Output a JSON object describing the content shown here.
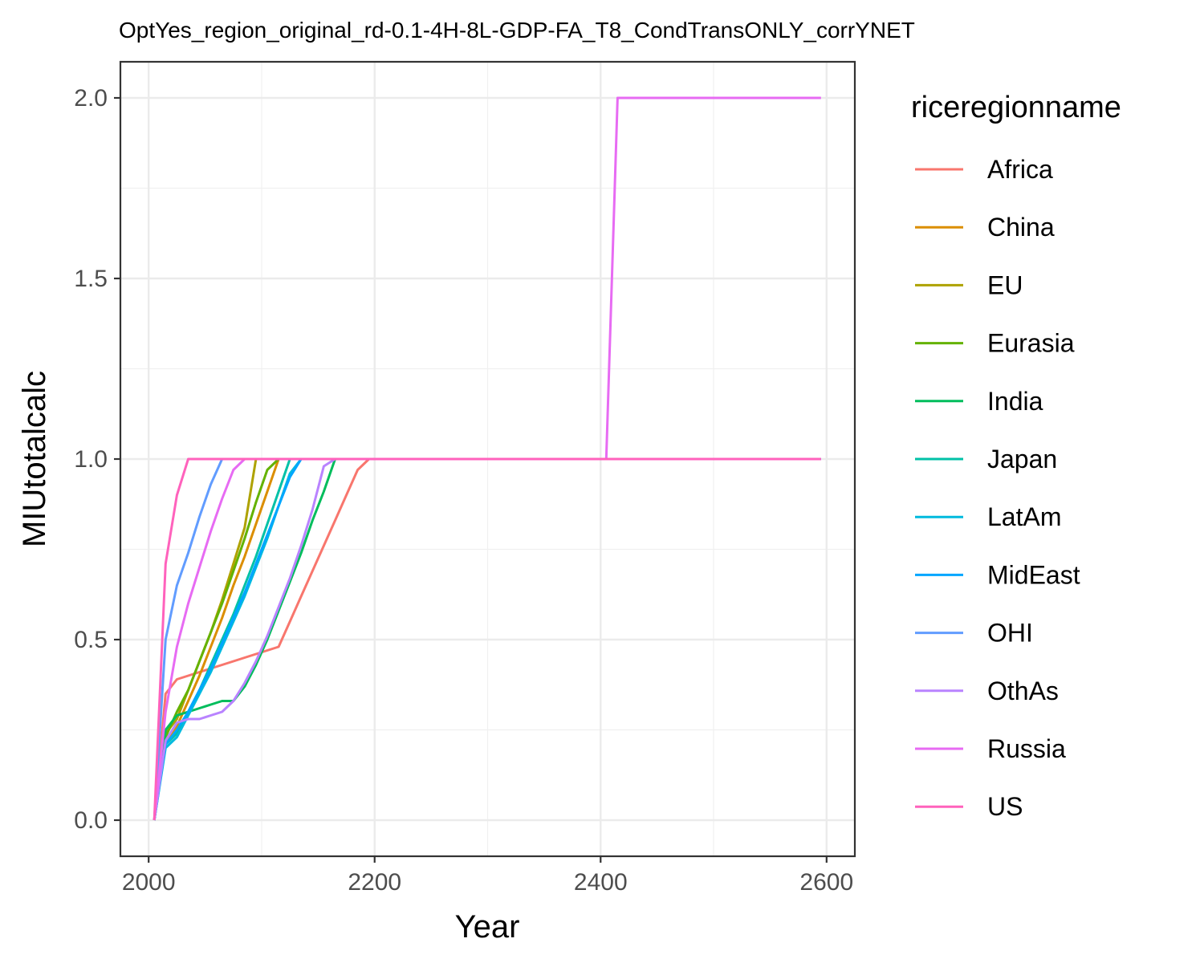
{
  "chart_data": {
    "type": "line",
    "title": "OptYes_region_original_rd-0.1-4H-8L-GDP-FA_T8_CondTransONLY_corrYNET",
    "xlabel": "Year",
    "ylabel": "MIUtotalcalc",
    "xlim": [
      1975,
      2625
    ],
    "ylim": [
      -0.1,
      2.1
    ],
    "x_ticks": [
      2000,
      2200,
      2400,
      2600
    ],
    "y_ticks": [
      0.0,
      0.5,
      1.0,
      1.5,
      2.0
    ],
    "x_tick_labels": [
      "2000",
      "2200",
      "2400",
      "2600"
    ],
    "y_tick_labels": [
      "0.0",
      "0.5",
      "1.0",
      "1.5",
      "2.0"
    ],
    "grid": true,
    "legend": {
      "title": "riceregionname",
      "position": "right"
    },
    "series": [
      {
        "name": "Africa",
        "color": "#F8766D",
        "x": [
          2005,
          2015,
          2025,
          2035,
          2045,
          2055,
          2065,
          2075,
          2085,
          2095,
          2105,
          2115,
          2125,
          2135,
          2145,
          2155,
          2165,
          2175,
          2185,
          2195,
          2595
        ],
        "y": [
          0.0,
          0.35,
          0.39,
          0.4,
          0.41,
          0.42,
          0.43,
          0.44,
          0.45,
          0.46,
          0.47,
          0.48,
          0.55,
          0.62,
          0.69,
          0.76,
          0.83,
          0.9,
          0.97,
          1.0,
          1.0
        ]
      },
      {
        "name": "China",
        "color": "#DB8E00",
        "x": [
          2005,
          2015,
          2025,
          2035,
          2045,
          2055,
          2065,
          2075,
          2085,
          2095,
          2105,
          2115,
          2595
        ],
        "y": [
          0.0,
          0.22,
          0.26,
          0.33,
          0.4,
          0.48,
          0.56,
          0.65,
          0.73,
          0.82,
          0.91,
          1.0,
          1.0
        ]
      },
      {
        "name": "EU",
        "color": "#AEA200",
        "x": [
          2005,
          2015,
          2025,
          2035,
          2045,
          2055,
          2065,
          2075,
          2085,
          2095,
          2595
        ],
        "y": [
          0.0,
          0.24,
          0.28,
          0.36,
          0.44,
          0.52,
          0.61,
          0.71,
          0.81,
          1.0,
          1.0
        ]
      },
      {
        "name": "Eurasia",
        "color": "#64B200",
        "x": [
          2005,
          2015,
          2025,
          2035,
          2045,
          2055,
          2065,
          2075,
          2085,
          2095,
          2105,
          2115,
          2595
        ],
        "y": [
          0.0,
          0.23,
          0.3,
          0.36,
          0.44,
          0.52,
          0.6,
          0.69,
          0.78,
          0.88,
          0.97,
          1.0,
          1.0
        ]
      },
      {
        "name": "India",
        "color": "#00BD5C",
        "x": [
          2005,
          2015,
          2025,
          2035,
          2045,
          2055,
          2065,
          2075,
          2085,
          2095,
          2105,
          2115,
          2125,
          2135,
          2145,
          2155,
          2165,
          2175,
          2595
        ],
        "y": [
          0.0,
          0.25,
          0.29,
          0.3,
          0.31,
          0.32,
          0.33,
          0.33,
          0.37,
          0.43,
          0.5,
          0.58,
          0.66,
          0.74,
          0.83,
          0.91,
          1.0,
          1.0,
          1.0
        ]
      },
      {
        "name": "Japan",
        "color": "#00C1A7",
        "x": [
          2005,
          2015,
          2025,
          2035,
          2045,
          2055,
          2065,
          2075,
          2085,
          2095,
          2105,
          2115,
          2125,
          2595
        ],
        "y": [
          0.0,
          0.21,
          0.24,
          0.3,
          0.36,
          0.43,
          0.5,
          0.57,
          0.65,
          0.73,
          0.82,
          0.91,
          1.0,
          1.0
        ]
      },
      {
        "name": "LatAm",
        "color": "#00BADE",
        "x": [
          2005,
          2015,
          2025,
          2035,
          2045,
          2055,
          2065,
          2075,
          2085,
          2095,
          2105,
          2115,
          2125,
          2135,
          2595
        ],
        "y": [
          0.0,
          0.2,
          0.23,
          0.29,
          0.35,
          0.41,
          0.48,
          0.55,
          0.62,
          0.7,
          0.78,
          0.87,
          0.96,
          1.0,
          1.0
        ]
      },
      {
        "name": "MidEast",
        "color": "#00A6FF",
        "x": [
          2005,
          2015,
          2025,
          2035,
          2045,
          2055,
          2065,
          2075,
          2085,
          2095,
          2105,
          2115,
          2125,
          2135,
          2595
        ],
        "y": [
          0.0,
          0.21,
          0.25,
          0.3,
          0.36,
          0.42,
          0.49,
          0.56,
          0.63,
          0.71,
          0.79,
          0.87,
          0.95,
          1.0,
          1.0
        ]
      },
      {
        "name": "OHI",
        "color": "#619CFF",
        "x": [
          2005,
          2015,
          2025,
          2035,
          2045,
          2055,
          2065,
          2595
        ],
        "y": [
          0.0,
          0.5,
          0.65,
          0.74,
          0.84,
          0.93,
          1.0,
          1.0
        ]
      },
      {
        "name": "OthAs",
        "color": "#B983FF",
        "x": [
          2005,
          2015,
          2025,
          2035,
          2045,
          2055,
          2065,
          2075,
          2085,
          2095,
          2105,
          2115,
          2125,
          2135,
          2145,
          2155,
          2165,
          2595
        ],
        "y": [
          0.0,
          0.22,
          0.27,
          0.28,
          0.28,
          0.29,
          0.3,
          0.33,
          0.38,
          0.44,
          0.51,
          0.59,
          0.67,
          0.76,
          0.86,
          0.98,
          1.0,
          1.0
        ]
      },
      {
        "name": "Russia",
        "color": "#E76BF3",
        "x": [
          2005,
          2015,
          2025,
          2035,
          2045,
          2055,
          2065,
          2075,
          2085,
          2405,
          2415,
          2595
        ],
        "y": [
          0.0,
          0.3,
          0.48,
          0.6,
          0.7,
          0.8,
          0.89,
          0.97,
          1.0,
          1.0,
          2.0,
          2.0
        ]
      },
      {
        "name": "US",
        "color": "#FF62BC",
        "x": [
          2005,
          2015,
          2025,
          2035,
          2595
        ],
        "y": [
          0.0,
          0.71,
          0.9,
          1.0,
          1.0
        ]
      }
    ]
  }
}
